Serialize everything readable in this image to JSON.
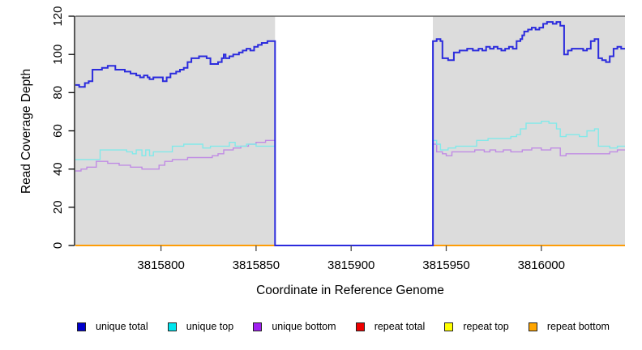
{
  "figure": {
    "plot_bg": "#DCDCDC",
    "gap_bg": "#FFFFFF",
    "top_border_color": "#606060",
    "axis_color": "#000000",
    "tick_color": "#4a4a4a",
    "text_color": "#000000"
  },
  "chart_data": {
    "type": "line",
    "subtype": "step",
    "title": "",
    "xlabel": "Coordinate in Reference Genome",
    "ylabel": "Read Coverage Depth",
    "xlim": [
      3815755,
      3816044
    ],
    "ylim": [
      0,
      120
    ],
    "x_ticks": [
      3815800,
      3815850,
      3815900,
      3815950,
      3816000
    ],
    "y_ticks": [
      0,
      20,
      40,
      60,
      80,
      100,
      120
    ],
    "grid": false,
    "legend_position": "bottom",
    "masked_region": {
      "x_start": 3815860,
      "x_end": 3815943,
      "fill": "#FFFFFF",
      "note": "white gap; unique coverage drops to 0 inside this repeat-masked window"
    },
    "draw_order": [
      "repeat total",
      "repeat top",
      "repeat bottom",
      "unique bottom",
      "unique top",
      "unique total"
    ],
    "series": [
      {
        "name": "unique total",
        "line_color": "#2B2BDD",
        "legend_color": "#0000CD",
        "line_width": 2,
        "points": [
          [
            3815755,
            84
          ],
          [
            3815757,
            83
          ],
          [
            3815760,
            85
          ],
          [
            3815762,
            86
          ],
          [
            3815764,
            92
          ],
          [
            3815769,
            93
          ],
          [
            3815772,
            94
          ],
          [
            3815776,
            92
          ],
          [
            3815781,
            91
          ],
          [
            3815784,
            90
          ],
          [
            3815787,
            89
          ],
          [
            3815789,
            88
          ],
          [
            3815791,
            89
          ],
          [
            3815793,
            88
          ],
          [
            3815794,
            87
          ],
          [
            3815796,
            88
          ],
          [
            3815799,
            88
          ],
          [
            3815801,
            86
          ],
          [
            3815803,
            88
          ],
          [
            3815805,
            90
          ],
          [
            3815808,
            91
          ],
          [
            3815810,
            92
          ],
          [
            3815812,
            93
          ],
          [
            3815814,
            96
          ],
          [
            3815816,
            98
          ],
          [
            3815820,
            99
          ],
          [
            3815824,
            98
          ],
          [
            3815826,
            95
          ],
          [
            3815830,
            96
          ],
          [
            3815832,
            98
          ],
          [
            3815833,
            100
          ],
          [
            3815834,
            98
          ],
          [
            3815836,
            99
          ],
          [
            3815838,
            100
          ],
          [
            3815841,
            101
          ],
          [
            3815843,
            102
          ],
          [
            3815845,
            103
          ],
          [
            3815847,
            102
          ],
          [
            3815849,
            104
          ],
          [
            3815851,
            105
          ],
          [
            3815853,
            106
          ],
          [
            3815856,
            107
          ],
          [
            3815860,
            0
          ],
          [
            3815943,
            107
          ],
          [
            3815945,
            108
          ],
          [
            3815947,
            107
          ],
          [
            3815948,
            98
          ],
          [
            3815951,
            97
          ],
          [
            3815954,
            101
          ],
          [
            3815957,
            102
          ],
          [
            3815961,
            103
          ],
          [
            3815964,
            102
          ],
          [
            3815967,
            103
          ],
          [
            3815969,
            102
          ],
          [
            3815971,
            104
          ],
          [
            3815973,
            103
          ],
          [
            3815975,
            104
          ],
          [
            3815977,
            103
          ],
          [
            3815979,
            102
          ],
          [
            3815981,
            103
          ],
          [
            3815983,
            104
          ],
          [
            3815985,
            103
          ],
          [
            3815987,
            107
          ],
          [
            3815989,
            108
          ],
          [
            3815990,
            110
          ],
          [
            3815991,
            112
          ],
          [
            3815993,
            113
          ],
          [
            3815995,
            114
          ],
          [
            3815997,
            113
          ],
          [
            3815999,
            114
          ],
          [
            3816001,
            116
          ],
          [
            3816003,
            117
          ],
          [
            3816006,
            116
          ],
          [
            3816008,
            117
          ],
          [
            3816010,
            115
          ],
          [
            3816012,
            100
          ],
          [
            3816014,
            102
          ],
          [
            3816016,
            103
          ],
          [
            3816022,
            102
          ],
          [
            3816024,
            103
          ],
          [
            3816026,
            107
          ],
          [
            3816028,
            108
          ],
          [
            3816030,
            98
          ],
          [
            3816032,
            97
          ],
          [
            3816034,
            96
          ],
          [
            3816036,
            99
          ],
          [
            3816038,
            103
          ],
          [
            3816040,
            104
          ],
          [
            3816042,
            103
          ],
          [
            3816044,
            103
          ]
        ]
      },
      {
        "name": "unique top",
        "line_color": "#82E9E9",
        "legend_color": "#00E5EE",
        "line_width": 1.4,
        "points": [
          [
            3815755,
            45
          ],
          [
            3815768,
            50
          ],
          [
            3815782,
            49
          ],
          [
            3815785,
            48
          ],
          [
            3815787,
            50
          ],
          [
            3815790,
            47
          ],
          [
            3815792,
            50
          ],
          [
            3815794,
            47
          ],
          [
            3815796,
            49
          ],
          [
            3815806,
            52
          ],
          [
            3815812,
            53
          ],
          [
            3815822,
            51
          ],
          [
            3815826,
            52
          ],
          [
            3815836,
            54
          ],
          [
            3815839,
            52
          ],
          [
            3815845,
            53
          ],
          [
            3815850,
            52
          ],
          [
            3815860,
            0
          ],
          [
            3815943,
            55
          ],
          [
            3815945,
            53
          ],
          [
            3815947,
            50
          ],
          [
            3815951,
            51
          ],
          [
            3815955,
            52
          ],
          [
            3815966,
            55
          ],
          [
            3815972,
            56
          ],
          [
            3815984,
            57
          ],
          [
            3815987,
            58
          ],
          [
            3815989,
            61
          ],
          [
            3815992,
            64
          ],
          [
            3816000,
            65
          ],
          [
            3816004,
            64
          ],
          [
            3816008,
            61
          ],
          [
            3816010,
            57
          ],
          [
            3816013,
            58
          ],
          [
            3816020,
            57
          ],
          [
            3816024,
            60
          ],
          [
            3816028,
            61
          ],
          [
            3816030,
            52
          ],
          [
            3816036,
            51
          ],
          [
            3816040,
            52
          ],
          [
            3816044,
            52
          ]
        ]
      },
      {
        "name": "unique bottom",
        "line_color": "#C08BE4",
        "legend_color": "#A020F0",
        "line_width": 1.4,
        "points": [
          [
            3815755,
            39
          ],
          [
            3815758,
            40
          ],
          [
            3815761,
            41
          ],
          [
            3815766,
            44
          ],
          [
            3815772,
            43
          ],
          [
            3815778,
            42
          ],
          [
            3815784,
            41
          ],
          [
            3815790,
            40
          ],
          [
            3815796,
            40
          ],
          [
            3815799,
            42
          ],
          [
            3815802,
            44
          ],
          [
            3815806,
            45
          ],
          [
            3815814,
            46
          ],
          [
            3815824,
            46
          ],
          [
            3815827,
            47
          ],
          [
            3815830,
            48
          ],
          [
            3815833,
            50
          ],
          [
            3815838,
            51
          ],
          [
            3815842,
            52
          ],
          [
            3815846,
            53
          ],
          [
            3815850,
            54
          ],
          [
            3815855,
            55
          ],
          [
            3815860,
            0
          ],
          [
            3815943,
            53
          ],
          [
            3815945,
            49
          ],
          [
            3815948,
            48
          ],
          [
            3815950,
            47
          ],
          [
            3815953,
            49
          ],
          [
            3815958,
            49
          ],
          [
            3815965,
            50
          ],
          [
            3815970,
            49
          ],
          [
            3815973,
            50
          ],
          [
            3815976,
            49
          ],
          [
            3815980,
            50
          ],
          [
            3815984,
            49
          ],
          [
            3815990,
            50
          ],
          [
            3815995,
            51
          ],
          [
            3816000,
            50
          ],
          [
            3816005,
            51
          ],
          [
            3816010,
            47
          ],
          [
            3816013,
            48
          ],
          [
            3816036,
            49
          ],
          [
            3816040,
            50
          ],
          [
            3816044,
            50
          ]
        ]
      },
      {
        "name": "repeat total",
        "line_color": "#DD0000",
        "legend_color": "#EE0000",
        "line_width": 1.6,
        "points": [
          [
            3815755,
            0
          ],
          [
            3816044,
            0
          ]
        ]
      },
      {
        "name": "repeat top",
        "line_color": "#FFFF00",
        "legend_color": "#FFFF00",
        "line_width": 1.6,
        "points": [
          [
            3815755,
            0
          ],
          [
            3816044,
            0
          ]
        ]
      },
      {
        "name": "repeat bottom",
        "line_color": "#FF9800",
        "legend_color": "#FFA500",
        "line_width": 1.8,
        "points": [
          [
            3815755,
            0
          ],
          [
            3816044,
            0
          ]
        ]
      }
    ]
  }
}
